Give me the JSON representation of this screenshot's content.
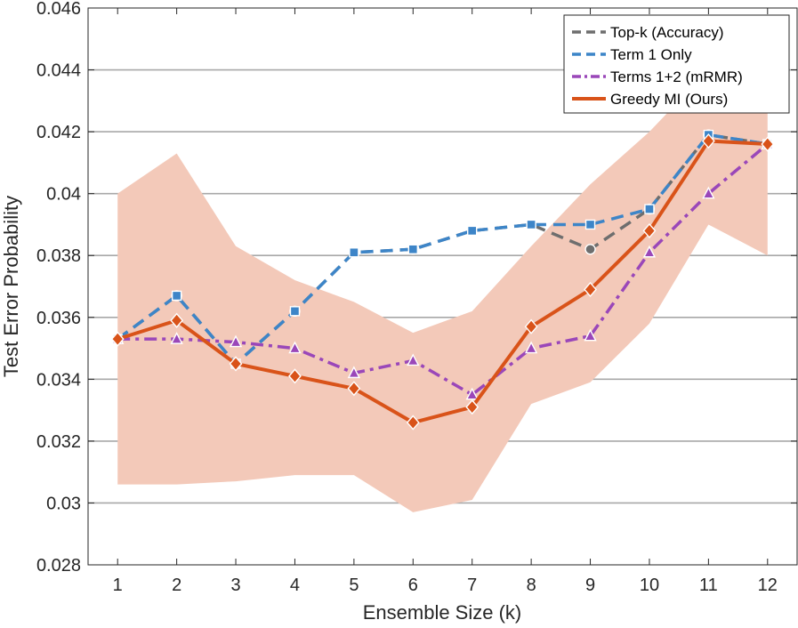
{
  "chart_data": {
    "type": "line",
    "xlabel": "Ensemble Size (k)",
    "ylabel": "Test Error Probability",
    "xlim": [
      0.5,
      12.5
    ],
    "ylim": [
      0.028,
      0.046
    ],
    "grid": "horizontal",
    "legend_position": "top-right",
    "x": [
      1,
      2,
      3,
      4,
      5,
      6,
      7,
      8,
      9,
      10,
      11,
      12
    ],
    "x_tick_labels": [
      "1",
      "2",
      "3",
      "4",
      "5",
      "6",
      "7",
      "8",
      "9",
      "10",
      "11",
      "12"
    ],
    "y_ticks": [
      0.028,
      0.03,
      0.032,
      0.034,
      0.036,
      0.038,
      0.04,
      0.042,
      0.044,
      0.046
    ],
    "y_tick_labels": [
      "0.028",
      "0.03",
      "0.032",
      "0.034",
      "0.036",
      "0.038",
      "0.04",
      "0.042",
      "0.044",
      "0.046"
    ],
    "band": {
      "name": "Greedy MI spread",
      "color": "#f3c9b9",
      "lower": [
        0.0306,
        0.0306,
        0.0307,
        0.0309,
        0.0309,
        0.0297,
        0.0301,
        0.0332,
        0.0339,
        0.0358,
        0.039,
        0.038
      ],
      "upper": [
        0.04,
        0.0413,
        0.0383,
        0.0372,
        0.0365,
        0.0355,
        0.0362,
        0.0383,
        0.0403,
        0.042,
        0.044,
        0.0445
      ]
    },
    "series": [
      {
        "name": "Top-k (Accuracy)",
        "color": "#6e6e6e",
        "dash": "dashed",
        "marker": "circle",
        "values": [
          0.0353,
          0.0367,
          0.0345,
          0.0362,
          0.0381,
          0.0382,
          0.0388,
          0.039,
          0.0382,
          0.0395,
          0.0419,
          0.0416
        ]
      },
      {
        "name": "Term 1 Only",
        "color": "#3d85c8",
        "dash": "dashed",
        "marker": "square",
        "values": [
          0.0353,
          0.0367,
          0.0345,
          0.0362,
          0.0381,
          0.0382,
          0.0388,
          0.039,
          0.039,
          0.0395,
          0.0419,
          0.0416
        ]
      },
      {
        "name": "Terms 1+2 (mRMR)",
        "color": "#9a47b9",
        "dash": "dashdot",
        "marker": "triangle",
        "values": [
          0.0353,
          0.0353,
          0.0352,
          0.035,
          0.0342,
          0.0346,
          0.0335,
          0.035,
          0.0354,
          0.0381,
          0.04,
          0.0416
        ]
      },
      {
        "name": "Greedy MI (Ours)",
        "color": "#d95319",
        "dash": "solid",
        "marker": "diamond",
        "values": [
          0.0353,
          0.0359,
          0.0345,
          0.0341,
          0.0337,
          0.0326,
          0.0331,
          0.0357,
          0.0369,
          0.0388,
          0.0417,
          0.0416
        ]
      }
    ]
  }
}
